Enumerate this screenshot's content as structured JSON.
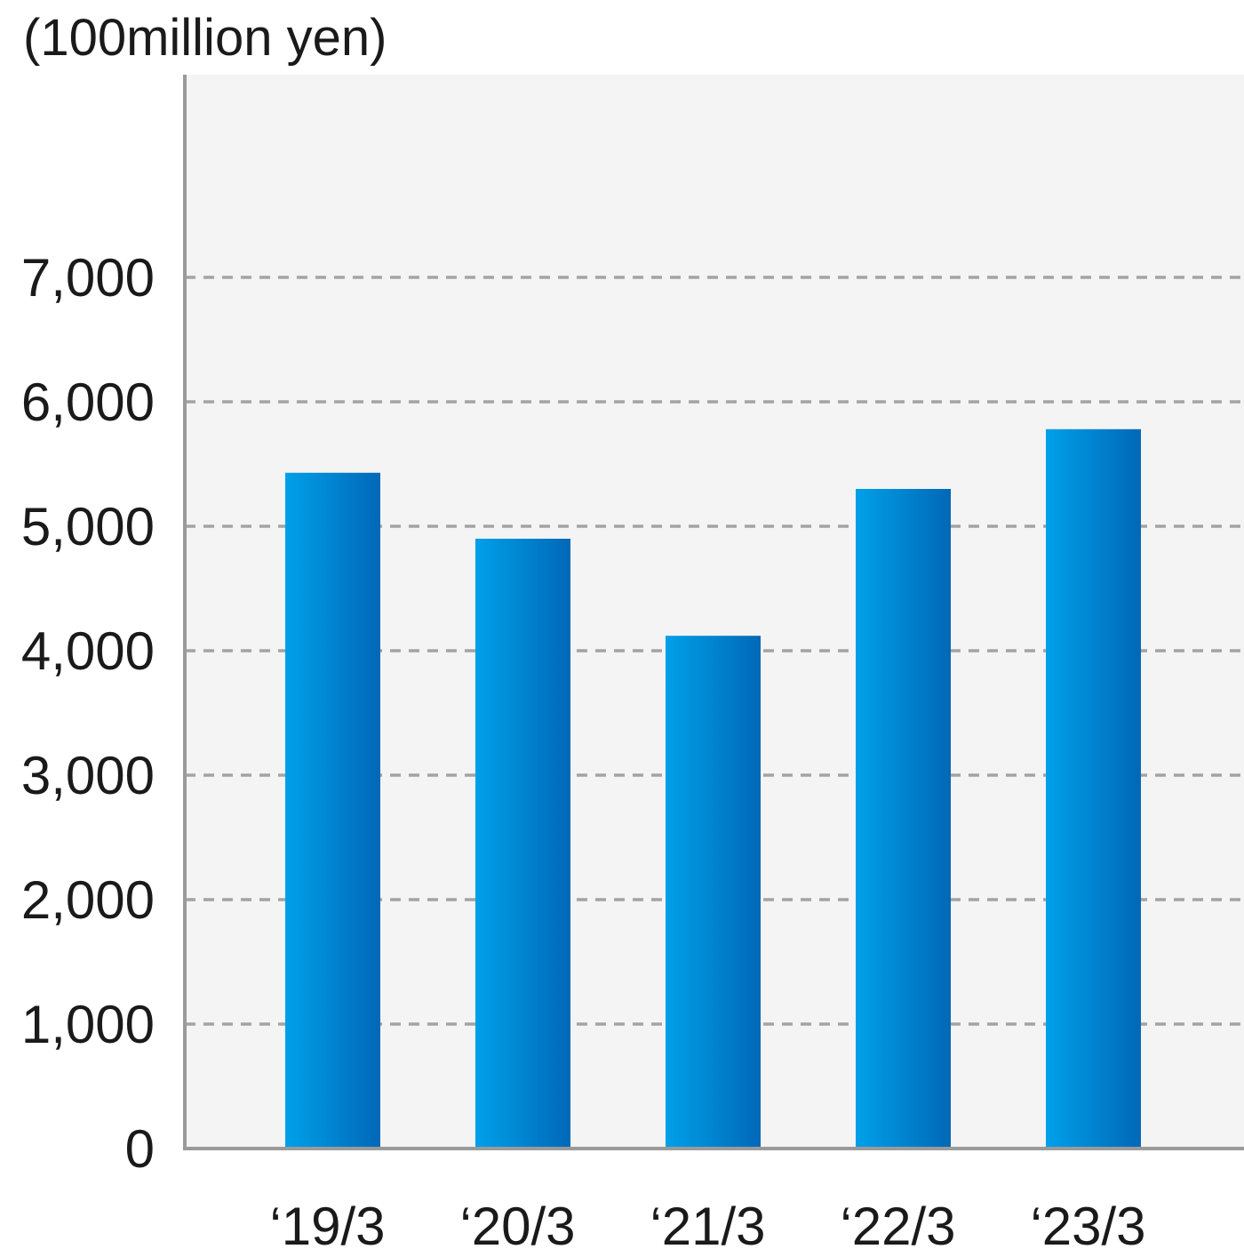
{
  "chart_data": {
    "type": "bar",
    "unit_label": "(100million yen)",
    "categories": [
      "‘19/3",
      "‘20/3",
      "‘21/3",
      "‘22/3",
      "‘23/3"
    ],
    "values": [
      5430,
      4900,
      4120,
      5300,
      5780
    ],
    "ylim": [
      0,
      8000
    ],
    "yticks": [
      0,
      1000,
      2000,
      3000,
      4000,
      5000,
      6000,
      7000
    ],
    "ytick_labels": [
      "0",
      "1,000",
      "2,000",
      "3,000",
      "4,000",
      "5,000",
      "6,000",
      "7,000"
    ],
    "grid": true,
    "colors": {
      "plot_background": "#f4f4f4",
      "gridline": "#a3a3a3",
      "axis": "#9a9a9a",
      "bar_light": "#00a0e9",
      "bar_dark": "#0068b7"
    }
  }
}
